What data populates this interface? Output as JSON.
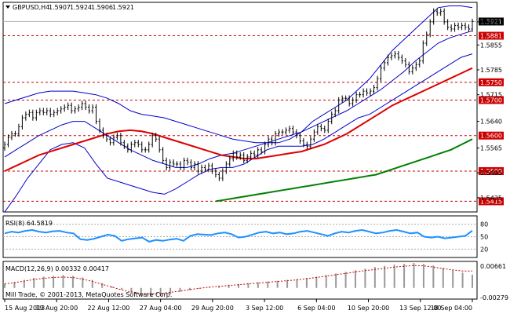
{
  "header": {
    "symbol_label": "GBPUSD,H4",
    "ohlc": [
      "1.5907",
      "1.5924",
      "1.5906",
      "1.5921"
    ]
  },
  "rsi_label": "RSI(8) 64.5819",
  "macd_label": "MACD(12,26,9) 0.00332 0.00417",
  "watermark": "Mill Trade, © 2001-2013, MetaQuotes Software Corp.",
  "colors": {
    "candle": "#000000",
    "bollinger": "#0000cc",
    "ma_fast": "#dd0000",
    "ma_slow": "#008000",
    "level": "#cc0000",
    "rsi": "#1e90ff",
    "macd": "#999999",
    "grid_axis": "#000000"
  },
  "chart_data": [
    {
      "type": "candlestick",
      "title": "GBPUSD,H4",
      "ylim": [
        1.5385,
        1.5975
      ],
      "price_ticks": [
        "1.5920",
        "1.5855",
        "1.5785",
        "1.5715",
        "1.5640",
        "1.5565",
        "1.5495",
        "1.5425"
      ],
      "x_ticks": [
        "15 Aug 2013",
        "19 Aug 20:00",
        "22 Aug 12:00",
        "27 Aug 04:00",
        "29 Aug 20:00",
        "3 Sep 12:00",
        "6 Sep 04:00",
        "10 Sep 20:00",
        "13 Sep 12:00",
        "18 Sep 04:00"
      ],
      "last_price": "1.5921",
      "levels": [
        {
          "value": 1.5881,
          "label": "1.5881"
        },
        {
          "value": 1.575,
          "label": "1.5750"
        },
        {
          "value": 1.57,
          "label": "1.5700"
        },
        {
          "value": 1.56,
          "label": "1.5600"
        },
        {
          "value": 1.55,
          "label": "1.5500"
        },
        {
          "value": 1.5415,
          "label": "1.5415"
        }
      ],
      "close": [
        1.5575,
        1.5595,
        1.5605,
        1.5605,
        1.5625,
        1.565,
        1.566,
        1.5665,
        1.565,
        1.5665,
        1.567,
        1.5665,
        1.567,
        1.566,
        1.5665,
        1.567,
        1.5675,
        1.568,
        1.5685,
        1.567,
        1.5675,
        1.568,
        1.569,
        1.568,
        1.567,
        1.568,
        1.564,
        1.5615,
        1.56,
        1.559,
        1.558,
        1.5595,
        1.56,
        1.558,
        1.557,
        1.556,
        1.5575,
        1.558,
        1.5575,
        1.556,
        1.556,
        1.5575,
        1.56,
        1.559,
        1.556,
        1.553,
        1.551,
        1.5525,
        1.552,
        1.552,
        1.551,
        1.553,
        1.5525,
        1.551,
        1.552,
        1.55,
        1.551,
        1.5505,
        1.5515,
        1.55,
        1.549,
        1.548,
        1.55,
        1.552,
        1.5535,
        1.555,
        1.554,
        1.5545,
        1.553,
        1.554,
        1.555,
        1.5545,
        1.556,
        1.5555,
        1.5575,
        1.559,
        1.558,
        1.5605,
        1.561,
        1.561,
        1.5615,
        1.562,
        1.561,
        1.56,
        1.5585,
        1.5575,
        1.557,
        1.559,
        1.561,
        1.5625,
        1.562,
        1.5615,
        1.564,
        1.566,
        1.567,
        1.57,
        1.5705,
        1.5705,
        1.569,
        1.57,
        1.5715,
        1.5715,
        1.5725,
        1.572,
        1.5725,
        1.5735,
        1.576,
        1.579,
        1.5805,
        1.582,
        1.5825,
        1.583,
        1.582,
        1.581,
        1.58,
        1.578,
        1.579,
        1.58,
        1.581,
        1.586,
        1.5885,
        1.592,
        1.595,
        1.5945,
        1.595,
        1.592,
        1.5905,
        1.59,
        1.591,
        1.5905,
        1.591,
        1.5905,
        1.59,
        1.5921
      ],
      "bollinger_upper": [
        1.569,
        1.57,
        1.571,
        1.572,
        1.5725,
        1.5725,
        1.5725,
        1.572,
        1.5715,
        1.5705,
        1.569,
        1.567,
        1.566,
        1.5655,
        1.565,
        1.564,
        1.563,
        1.562,
        1.561,
        1.56,
        1.559,
        1.5585,
        1.558,
        1.558,
        1.558,
        1.559,
        1.561,
        1.564,
        1.566,
        1.568,
        1.57,
        1.573,
        1.576,
        1.58,
        1.584,
        1.587,
        1.59,
        1.593,
        1.596,
        1.5965,
        1.5965,
        1.596
      ],
      "bollinger_middle": [
        1.554,
        1.556,
        1.558,
        1.56,
        1.5615,
        1.563,
        1.564,
        1.564,
        1.562,
        1.56,
        1.558,
        1.556,
        1.5545,
        1.553,
        1.552,
        1.551,
        1.551,
        1.552,
        1.5535,
        1.5545,
        1.555,
        1.556,
        1.557,
        1.558,
        1.559,
        1.56,
        1.561,
        1.5625,
        1.564,
        1.5655,
        1.567,
        1.569,
        1.571,
        1.573,
        1.5755,
        1.578,
        1.581,
        1.5835,
        1.586,
        1.5875,
        1.5885,
        1.5895
      ],
      "bollinger_lower": [
        1.5385,
        1.543,
        1.548,
        1.552,
        1.556,
        1.5575,
        1.558,
        1.5565,
        1.552,
        1.548,
        1.547,
        1.546,
        1.545,
        1.544,
        1.5435,
        1.545,
        1.547,
        1.549,
        1.5505,
        1.551,
        1.551,
        1.552,
        1.554,
        1.556,
        1.557,
        1.557,
        1.557,
        1.5575,
        1.559,
        1.561,
        1.563,
        1.565,
        1.566,
        1.568,
        1.57,
        1.572,
        1.574,
        1.576,
        1.578,
        1.58,
        1.582,
        1.583
      ],
      "ma_fast": [
        1.55,
        1.5515,
        1.553,
        1.5545,
        1.5555,
        1.5565,
        1.5575,
        1.5585,
        1.5595,
        1.5605,
        1.5612,
        1.5615,
        1.5612,
        1.5605,
        1.5595,
        1.5585,
        1.5575,
        1.5565,
        1.5555,
        1.5545,
        1.554,
        1.5535,
        1.5535,
        1.554,
        1.5545,
        1.555,
        1.5555,
        1.5565,
        1.5575,
        1.559,
        1.5605,
        1.5625,
        1.5645,
        1.5665,
        1.5685,
        1.57,
        1.5715,
        1.573,
        1.5745,
        1.576,
        1.5775,
        1.579
      ],
      "ma_slow": [
        1.5415,
        1.542,
        1.5425,
        1.543,
        1.5435,
        1.544,
        1.5445,
        1.545,
        1.5455,
        1.546,
        1.5465,
        1.547,
        1.5475,
        1.548,
        1.5485,
        1.549,
        1.55,
        1.551,
        1.552,
        1.553,
        1.554,
        1.555,
        1.556,
        1.5575,
        1.559
      ],
      "ma_slow_start_index": 60
    },
    {
      "type": "line",
      "title": "RSI(8) 64.5819",
      "ylim": [
        0,
        100
      ],
      "levels": [
        80,
        50,
        20
      ],
      "tick_labels": [
        "80",
        "50",
        "20"
      ],
      "values": [
        58,
        62,
        60,
        64,
        66,
        62,
        60,
        63,
        64,
        60,
        58,
        44,
        42,
        45,
        50,
        55,
        52,
        40,
        44,
        46,
        48,
        38,
        42,
        40,
        43,
        45,
        40,
        52,
        56,
        55,
        54,
        58,
        60,
        56,
        48,
        50,
        55,
        60,
        62,
        58,
        60,
        56,
        58,
        62,
        64,
        60,
        56,
        52,
        58,
        62,
        60,
        64,
        66,
        62,
        58,
        60,
        64,
        66,
        62,
        58,
        60,
        50,
        48,
        50,
        46,
        48,
        50,
        52,
        64.58
      ]
    },
    {
      "type": "bar",
      "title": "MACD(12,26,9) 0.00332 0.00417",
      "ylim": [
        -0.00279,
        0.00661
      ],
      "tick_labels": [
        "0.00661",
        "-0.00279"
      ],
      "values": [
        0.001,
        0.0015,
        0.002,
        0.0025,
        0.0028,
        0.003,
        0.0032,
        0.003,
        0.0026,
        0.002,
        0.0012,
        0.0004,
        -0.0004,
        -0.0012,
        -0.0018,
        -0.0022,
        -0.002,
        -0.0016,
        -0.001,
        -0.0006,
        -0.0002,
        0.0002,
        0.0005,
        0.0008,
        0.001,
        0.0012,
        0.0014,
        0.0016,
        0.0018,
        0.002,
        0.0022,
        0.0025,
        0.0028,
        0.0032,
        0.0036,
        0.004,
        0.0044,
        0.0048,
        0.0052,
        0.0055,
        0.0058,
        0.006,
        0.0062,
        0.006,
        0.0056,
        0.005,
        0.0044,
        0.0038,
        0.0033
      ],
      "signal": [
        0.001,
        0.0013,
        0.0017,
        0.0021,
        0.0024,
        0.0026,
        0.0027,
        0.0026,
        0.0022,
        0.0016,
        0.0009,
        0.0002,
        -0.0005,
        -0.001,
        -0.0014,
        -0.0015,
        -0.0014,
        -0.0011,
        -0.0008,
        -0.0004,
        -0.0001,
        0.0002,
        0.0004,
        0.0006,
        0.0008,
        0.001,
        0.0012,
        0.0014,
        0.0016,
        0.0018,
        0.002,
        0.0023,
        0.0026,
        0.0029,
        0.0033,
        0.0036,
        0.004,
        0.0043,
        0.0046,
        0.0049,
        0.0052,
        0.0054,
        0.0056,
        0.0055,
        0.0052,
        0.0048,
        0.0045,
        0.0042,
        0.0042
      ]
    }
  ]
}
